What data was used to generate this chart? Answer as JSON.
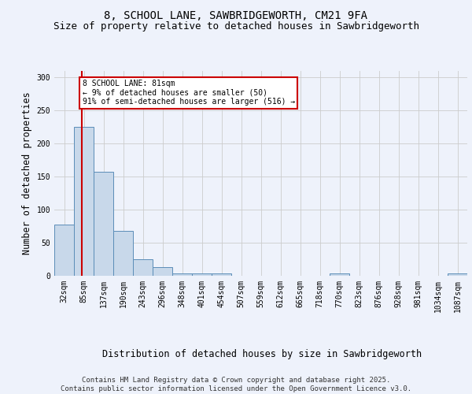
{
  "title1": "8, SCHOOL LANE, SAWBRIDGEWORTH, CM21 9FA",
  "title2": "Size of property relative to detached houses in Sawbridgeworth",
  "xlabel": "Distribution of detached houses by size in Sawbridgeworth",
  "ylabel": "Number of detached properties",
  "bar_color": "#c8d8ea",
  "bar_edge_color": "#5b8db8",
  "annotation_box_color": "#cc0000",
  "annotation_line_color": "#cc0000",
  "property_label": "8 SCHOOL LANE: 81sqm",
  "pct_smaller": 9,
  "count_smaller": 50,
  "pct_larger": 91,
  "count_larger": 516,
  "categories": [
    "32sqm",
    "85sqm",
    "137sqm",
    "190sqm",
    "243sqm",
    "296sqm",
    "348sqm",
    "401sqm",
    "454sqm",
    "507sqm",
    "559sqm",
    "612sqm",
    "665sqm",
    "718sqm",
    "770sqm",
    "823sqm",
    "876sqm",
    "928sqm",
    "981sqm",
    "1034sqm",
    "1087sqm"
  ],
  "values": [
    77,
    225,
    157,
    68,
    25,
    13,
    4,
    4,
    4,
    0,
    0,
    0,
    0,
    0,
    3,
    0,
    0,
    0,
    0,
    0,
    3
  ],
  "ylim": [
    0,
    310
  ],
  "yticks": [
    0,
    50,
    100,
    150,
    200,
    250,
    300
  ],
  "footer1": "Contains HM Land Registry data © Crown copyright and database right 2025.",
  "footer2": "Contains public sector information licensed under the Open Government Licence v3.0.",
  "background_color": "#eef2fb",
  "grid_color": "#cccccc",
  "title_fontsize": 10,
  "subtitle_fontsize": 9,
  "axis_label_fontsize": 8.5,
  "tick_fontsize": 7,
  "footer_fontsize": 6.5,
  "annotation_fontsize": 7
}
